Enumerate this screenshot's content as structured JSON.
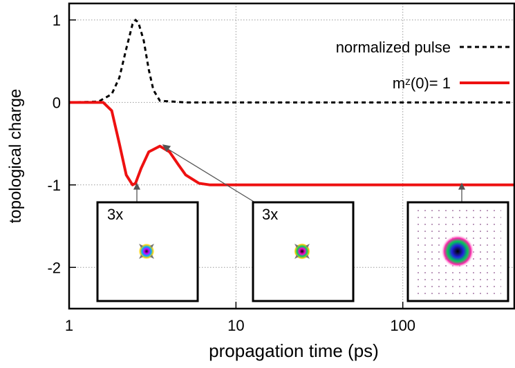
{
  "chart_data": {
    "type": "line",
    "x_label": "propagation time (ps)",
    "y_label": "topological charge",
    "x_log": true,
    "grid": true,
    "legend": "upper right",
    "xlim": [
      1,
      466
    ],
    "ylim": [
      -2.5,
      1.2
    ],
    "xticks": [
      1,
      10,
      100
    ],
    "yticks": [
      1,
      0,
      -1,
      -2
    ],
    "annotations": [
      "3x",
      "3x"
    ],
    "series": [
      {
        "name": "normalized pulse",
        "color": "#000000",
        "dash": true,
        "x": [
          1,
          1.5,
          1.8,
          2,
          2.2,
          2.4,
          2.5,
          2.6,
          2.8,
          3,
          3.2,
          3.5,
          5,
          10,
          100,
          466
        ],
        "values": [
          0,
          0.01,
          0.1,
          0.3,
          0.65,
          0.95,
          1,
          0.97,
          0.75,
          0.4,
          0.15,
          0.02,
          0,
          0,
          0,
          0
        ]
      },
      {
        "name": "mᶻ(0)= 1",
        "color": "#ee1111",
        "dash": false,
        "x": [
          1,
          1.6,
          1.8,
          2,
          2.2,
          2.4,
          2.5,
          2.7,
          3,
          3.5,
          4,
          4.5,
          5,
          6,
          7,
          10,
          100,
          466
        ],
        "values": [
          0,
          0,
          -0.1,
          -0.5,
          -0.88,
          -1,
          -0.98,
          -0.8,
          -0.6,
          -0.53,
          -0.6,
          -0.75,
          -0.88,
          -0.98,
          -1,
          -1,
          -1,
          -1
        ]
      }
    ]
  }
}
